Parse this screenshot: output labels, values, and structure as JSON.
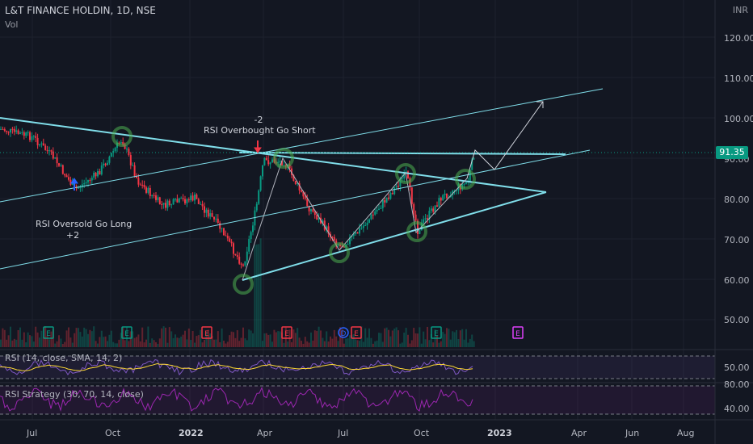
{
  "header": {
    "title": "L&T FINANCE HOLDIN, 1D, NSE",
    "volume_label": "Vol",
    "currency": "INR"
  },
  "price_axis": {
    "ticks": [
      "120.00",
      "110.00",
      "100.00",
      "90.00",
      "80.00",
      "70.00",
      "60.00",
      "50.00"
    ],
    "current_price": "91.35"
  },
  "time_axis": {
    "labels": [
      "Jul",
      "Oct",
      "2022",
      "Apr",
      "Jul",
      "Oct",
      "2023",
      "Apr",
      "Jun",
      "Aug"
    ]
  },
  "annotations": {
    "overbought_value": "-2",
    "overbought_text": "RSI Overbought Go Short",
    "oversold_text": "RSI Oversold Go Long",
    "oversold_value": "+2"
  },
  "event_markers": [
    "E",
    "E",
    "E",
    "E",
    "D",
    "E",
    "E",
    "E"
  ],
  "rsi_pane": {
    "label": "RSI (14, close, SMA, 14, 2)",
    "tick": "50.00"
  },
  "strategy_pane": {
    "label": "RSI Strategy (30, 70, 14, close)",
    "ticks": [
      "80.00",
      "40.00"
    ]
  },
  "colors": {
    "background": "#131722",
    "up": "#089981",
    "down": "#f23645",
    "trend": "#80deea",
    "circle": "#4caf50",
    "rsi": "#7e57c2",
    "strategy": "#9c27b0"
  }
}
